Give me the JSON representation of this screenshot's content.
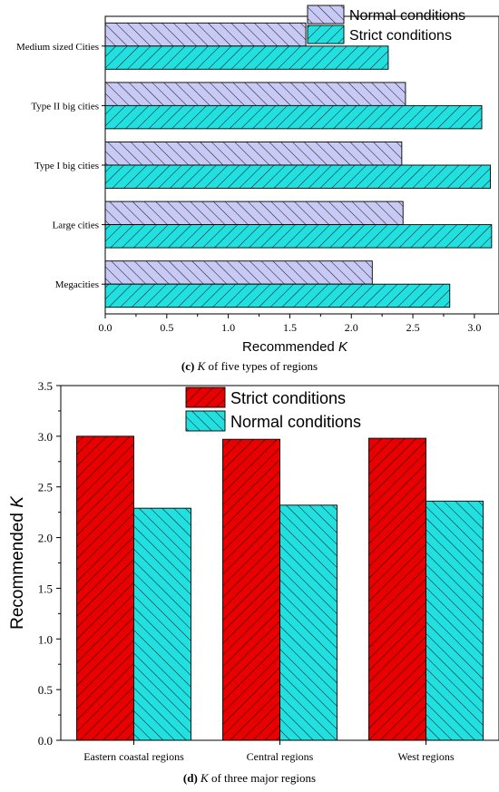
{
  "chart_data": [
    {
      "type": "bar",
      "orientation": "horizontal",
      "caption_label": "(c)",
      "caption_var": "K",
      "caption_rest": "of five types of regions",
      "categories": [
        "Megacities",
        "Large cities",
        "Type I big cities",
        "Type II big cities",
        "Medium sized Cities"
      ],
      "series": [
        {
          "name": "Normal conditions",
          "values": [
            2.17,
            2.42,
            2.41,
            2.44,
            1.63
          ],
          "color": "#c9c9f5",
          "hatch": "back"
        },
        {
          "name": "Strict conditions",
          "values": [
            2.8,
            3.14,
            3.13,
            3.06,
            2.3
          ],
          "color": "#22e0e0",
          "hatch": "forward"
        }
      ],
      "xlabel_text": "Recommended",
      "xlabel_var": "K",
      "xlim": [
        0,
        3.2
      ],
      "xticks": [
        "0.0",
        "0.5",
        "1.0",
        "1.5",
        "2.0",
        "2.5",
        "3.0"
      ],
      "legend": "top-right"
    },
    {
      "type": "bar",
      "orientation": "vertical",
      "caption_label": "(d)",
      "caption_var": "K",
      "caption_rest": "of three major regions",
      "categories": [
        "Eastern coastal regions",
        "Central regions",
        "West regions"
      ],
      "series": [
        {
          "name": "Strict conditions",
          "values": [
            3.0,
            2.97,
            2.98
          ],
          "color": "#e80000",
          "hatch": "forward"
        },
        {
          "name": "Normal conditions",
          "values": [
            2.29,
            2.32,
            2.36
          ],
          "color": "#22e0e0",
          "hatch": "back"
        }
      ],
      "ylabel_text": "Recommended",
      "ylabel_var": "K",
      "ylim": [
        0,
        3.5
      ],
      "yticks": [
        "0.0",
        "0.5",
        "1.0",
        "1.5",
        "2.0",
        "2.5",
        "3.0",
        "3.5"
      ],
      "legend": "top-right"
    }
  ]
}
